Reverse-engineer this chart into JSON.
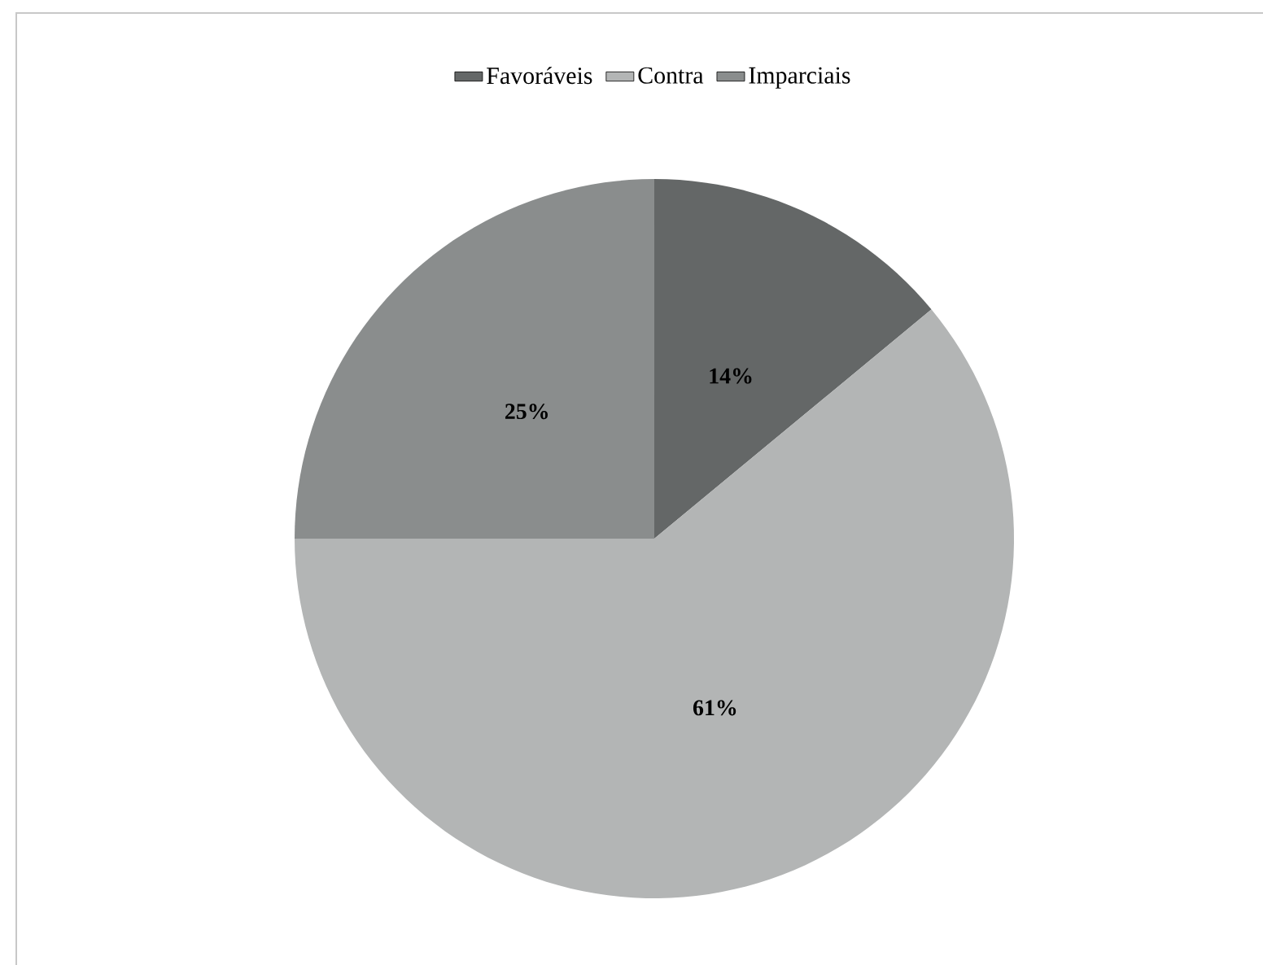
{
  "chart_data": {
    "type": "pie",
    "categories": [
      "Favoráveis",
      "Contra",
      "Imparciais"
    ],
    "values": [
      14,
      61,
      25
    ],
    "colors": [
      "#646767",
      "#b3b5b5",
      "#8a8d8d"
    ],
    "value_labels": [
      "14%",
      "61%",
      "25%"
    ],
    "legend": "top"
  }
}
